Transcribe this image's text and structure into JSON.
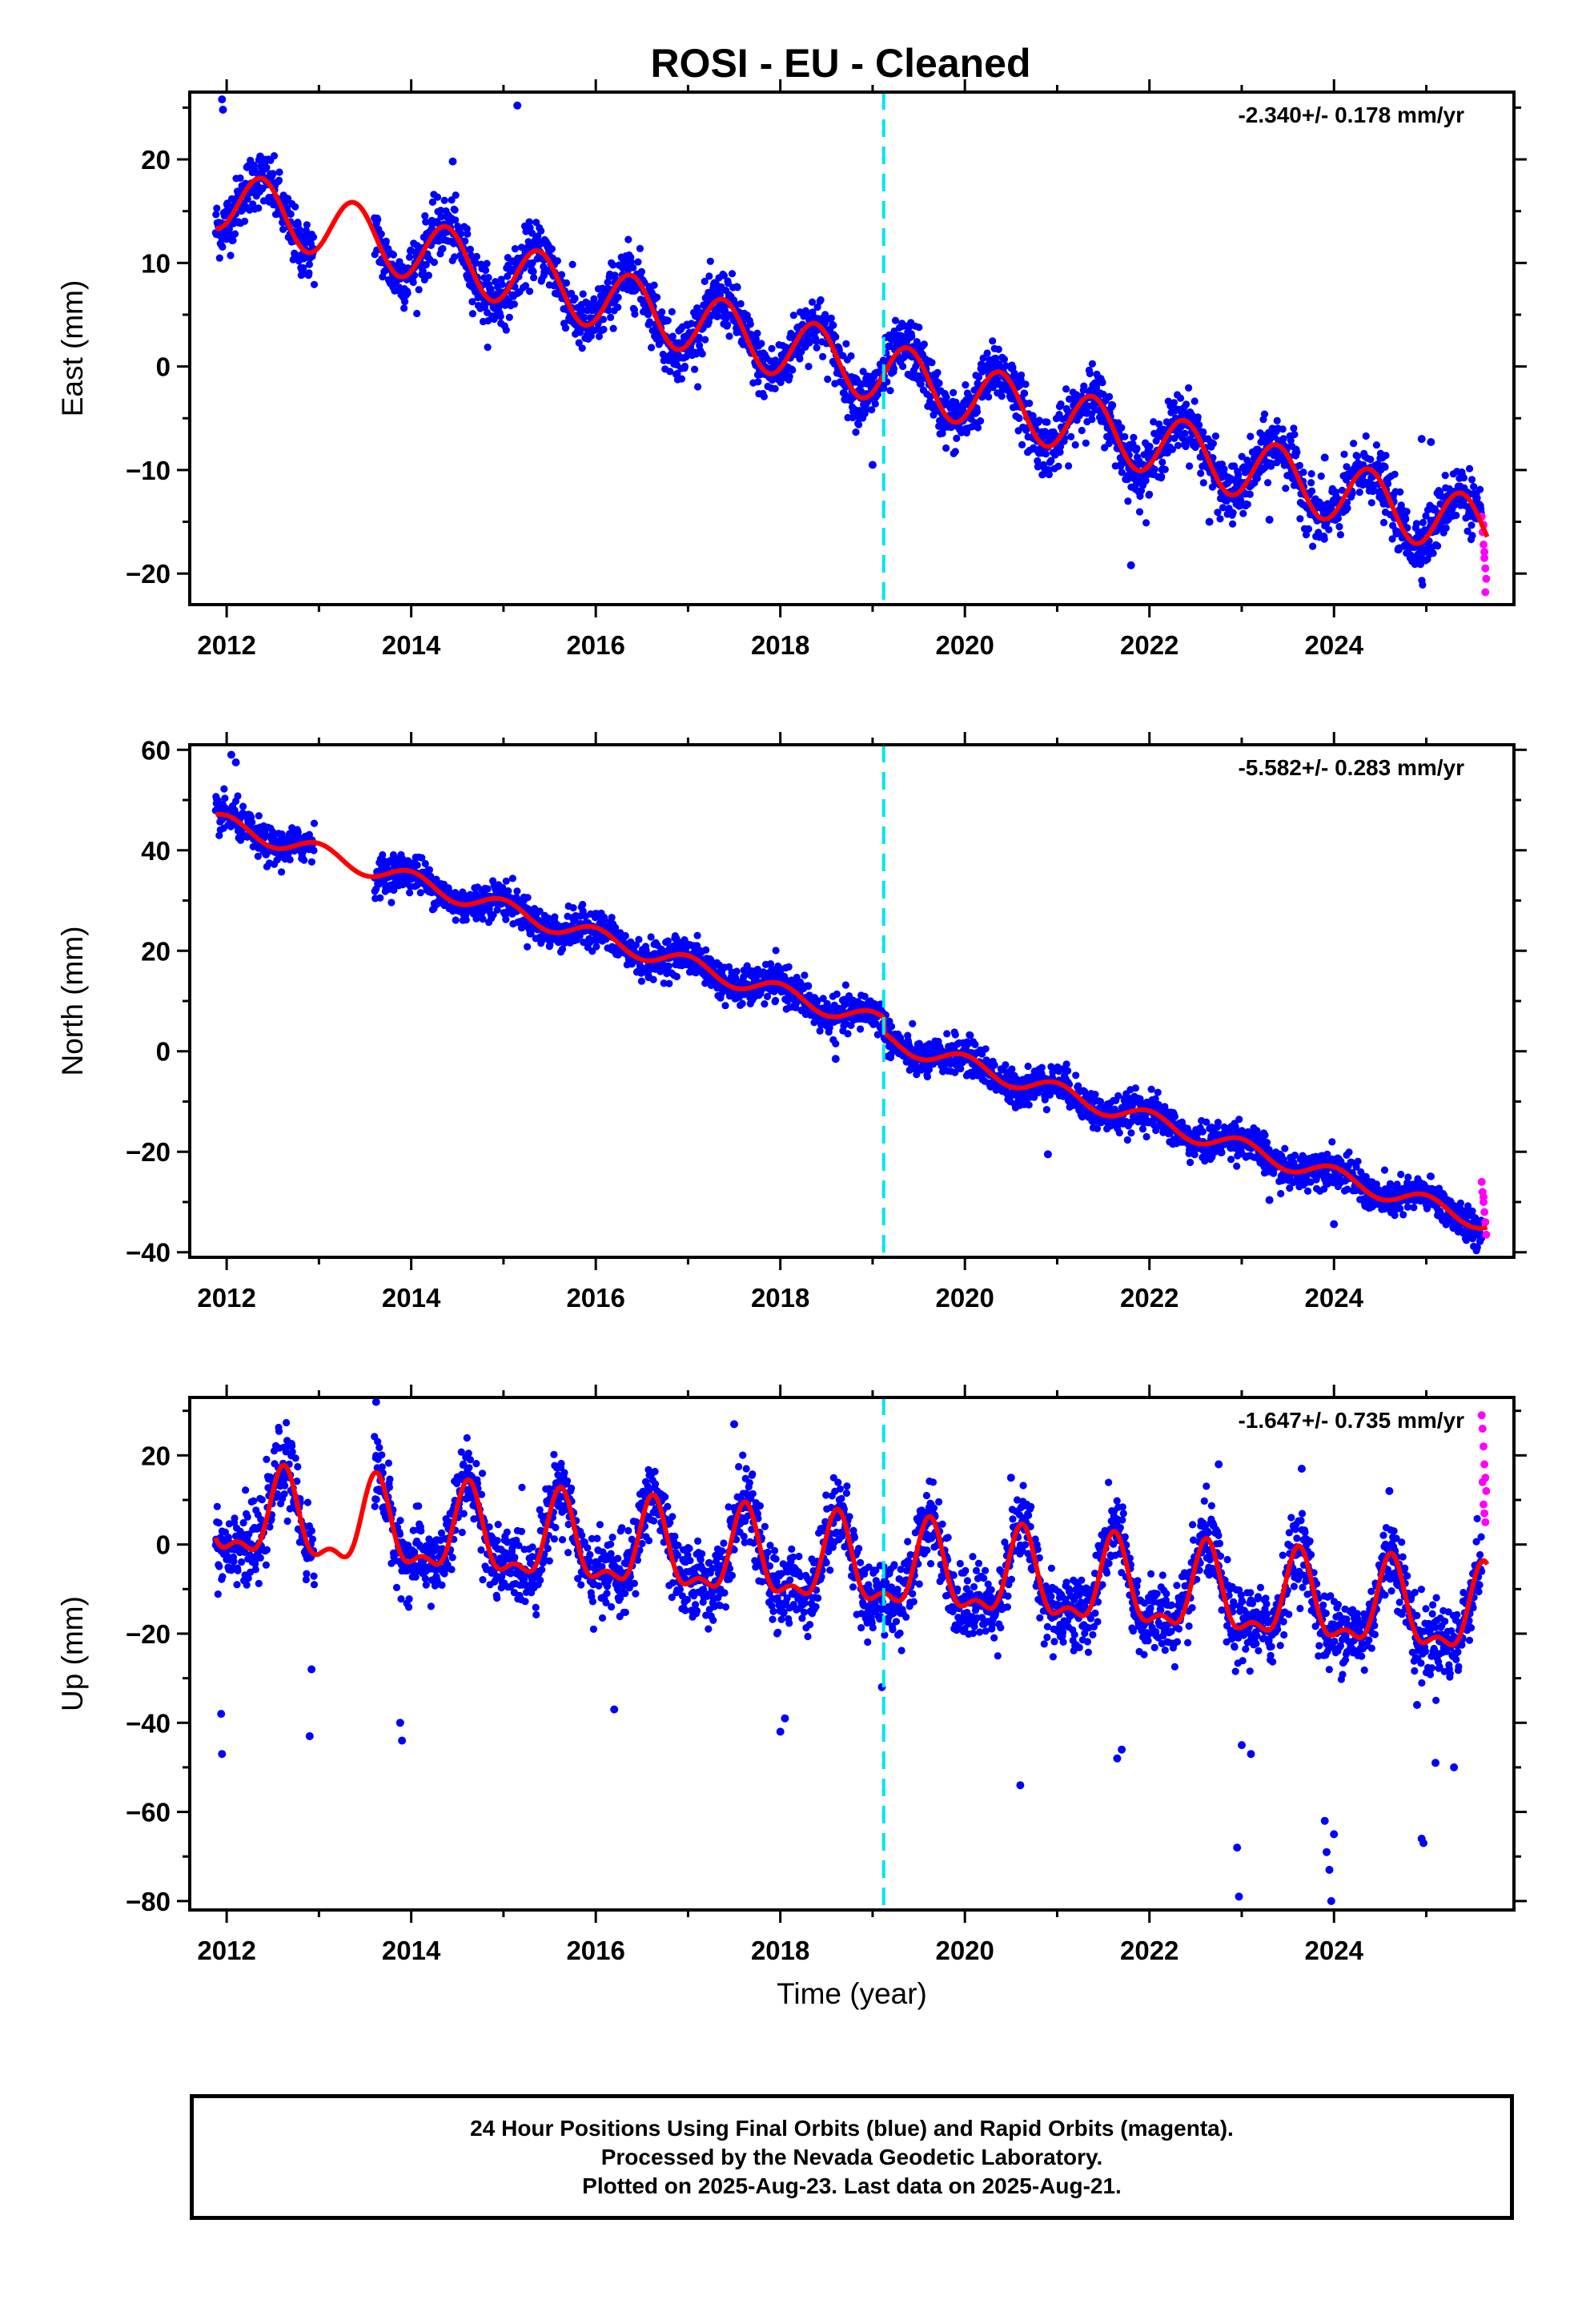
{
  "figure": {
    "title": "ROSI  - EU - Cleaned",
    "xlabel": "Time (year)",
    "footer": [
      "24 Hour Positions Using Final Orbits (blue) and Rapid Orbits (magenta).",
      "Processed by the Nevada Geodetic Laboratory.",
      "Plotted on 2025-Aug-23. Last data on 2025-Aug-21."
    ]
  },
  "colors": {
    "final_orbits": "#0000ff",
    "rapid_orbits": "#ff00ff",
    "model_fit": "#ff0000",
    "equipment_change": "#00e5ee"
  },
  "chart_data": [
    {
      "type": "scatter",
      "component": "east",
      "ylabel": "East (mm)",
      "rate_text": "-2.340+/- 0.178 mm/yr",
      "xlim": [
        2011.6,
        2025.95
      ],
      "ylim": [
        -23,
        26.5
      ],
      "xticks": [
        2012,
        2014,
        2016,
        2018,
        2020,
        2022,
        2024
      ],
      "yticks": [
        -20,
        -10,
        0,
        10,
        20
      ],
      "model": {
        "intercept": 16.3,
        "t0": 2011.9,
        "rate": -2.34,
        "amplitude": 3.0,
        "peak": 0.38,
        "second_amp": 0,
        "second_peak": 0,
        "noise": 1.4
      },
      "gaps": [
        [
          2012.95,
          2013.6
        ]
      ],
      "offsets": [],
      "equipment_change": 2019.12,
      "rapid_start": 2025.6,
      "outliers": [
        [
          2011.95,
          25.8
        ],
        [
          2011.96,
          24.8
        ],
        [
          2015.15,
          25.2
        ],
        [
          2014.45,
          19.8
        ],
        [
          2021.8,
          -19.2
        ],
        [
          2023.3,
          -14.8
        ],
        [
          2022.65,
          -15.0
        ],
        [
          2024.7,
          -17.6
        ],
        [
          2025.05,
          -7.3
        ],
        [
          2023.9,
          -8.8
        ],
        [
          2024.95,
          -7.0
        ],
        [
          2019.0,
          -9.5
        ]
      ],
      "rapid_points": [
        [
          2025.6,
          -14.5
        ],
        [
          2025.61,
          -16.0
        ],
        [
          2025.62,
          -17.2
        ],
        [
          2025.63,
          -18.5
        ],
        [
          2025.64,
          -19.5
        ],
        [
          2025.65,
          -20.5
        ],
        [
          2025.62,
          -15.3
        ],
        [
          2025.64,
          -21.8
        ],
        [
          2025.63,
          -17.9
        ]
      ]
    },
    {
      "type": "scatter",
      "component": "north",
      "ylabel": "North (mm)",
      "rate_text": "-5.582+/- 0.283 mm/yr",
      "xlim": [
        2011.6,
        2025.95
      ],
      "ylim": [
        -41,
        61
      ],
      "xticks": [
        2012,
        2014,
        2016,
        2018,
        2020,
        2022,
        2024
      ],
      "yticks": [
        -40,
        -20,
        0,
        20,
        40,
        60
      ],
      "model": {
        "intercept": 45.7,
        "t0": 2011.9,
        "rate": -5.58,
        "amplitude": 1.8,
        "peak": 0.0,
        "second_amp": 0,
        "second_peak": 0,
        "noise": 1.8
      },
      "gaps": [
        [
          2012.95,
          2013.6
        ]
      ],
      "offsets": [
        [
          2019.12,
          -3.0
        ]
      ],
      "equipment_change": 2019.12,
      "rapid_start": 2025.6,
      "outliers": [
        [
          2012.05,
          59.0
        ],
        [
          2012.1,
          57.5
        ],
        [
          2018.6,
          -1.5
        ],
        [
          2025.55,
          -39.0
        ],
        [
          2020.9,
          -20.5
        ],
        [
          2023.3,
          -29.6
        ],
        [
          2024.0,
          -34.4
        ],
        [
          2018.3,
          13.0
        ]
      ],
      "rapid_points": [
        [
          2025.6,
          -26.0
        ],
        [
          2025.61,
          -28.0
        ],
        [
          2025.62,
          -30.0
        ],
        [
          2025.63,
          -32.0
        ],
        [
          2025.64,
          -34.0
        ],
        [
          2025.65,
          -36.5
        ],
        [
          2025.62,
          -29.0
        ]
      ]
    },
    {
      "type": "scatter",
      "component": "up",
      "ylabel": "Up (mm)",
      "rate_text": "-1.647+/- 0.735 mm/yr",
      "xlim": [
        2011.6,
        2025.95
      ],
      "ylim": [
        -82,
        33
      ],
      "xticks": [
        2012,
        2014,
        2016,
        2018,
        2020,
        2022,
        2024
      ],
      "yticks": [
        -80,
        -60,
        -40,
        -20,
        0,
        20
      ],
      "model": {
        "intercept": 6.0,
        "t0": 2011.9,
        "rate": -1.647,
        "amplitude": 9.0,
        "peak": 0.62,
        "second_amp": 4.0,
        "second_peak": 0.62,
        "noise": 4.2
      },
      "gaps": [
        [
          2012.95,
          2013.6
        ]
      ],
      "offsets": [],
      "equipment_change": 2019.12,
      "rapid_start": 2025.6,
      "outliers": [
        [
          2011.95,
          -47
        ],
        [
          2011.94,
          -38
        ],
        [
          2012.9,
          -43
        ],
        [
          2012.92,
          -28
        ],
        [
          2013.9,
          -44
        ],
        [
          2013.88,
          -40
        ],
        [
          2013.62,
          32
        ],
        [
          2016.2,
          -37
        ],
        [
          2018.0,
          -42
        ],
        [
          2018.05,
          -39
        ],
        [
          2019.1,
          -32
        ],
        [
          2020.6,
          -54
        ],
        [
          2021.65,
          -48
        ],
        [
          2021.7,
          -46
        ],
        [
          2022.95,
          -68
        ],
        [
          2022.97,
          -79
        ],
        [
          2023.0,
          -45
        ],
        [
          2023.1,
          -47
        ],
        [
          2023.9,
          -62
        ],
        [
          2023.92,
          -69
        ],
        [
          2023.95,
          -73
        ],
        [
          2023.97,
          -80
        ],
        [
          2024.0,
          -65
        ],
        [
          2024.95,
          -66
        ],
        [
          2024.97,
          -67
        ],
        [
          2025.3,
          -50
        ],
        [
          2025.1,
          -49
        ],
        [
          2024.9,
          -36
        ],
        [
          2022.75,
          18
        ],
        [
          2023.65,
          17
        ],
        [
          2024.6,
          12
        ],
        [
          2020.5,
          15
        ],
        [
          2017.5,
          27
        ]
      ],
      "rapid_points": [
        [
          2025.6,
          29
        ],
        [
          2025.61,
          26
        ],
        [
          2025.62,
          22
        ],
        [
          2025.63,
          18
        ],
        [
          2025.64,
          15
        ],
        [
          2025.65,
          12
        ],
        [
          2025.62,
          9
        ],
        [
          2025.63,
          7
        ],
        [
          2025.64,
          5
        ],
        [
          2025.61,
          14
        ]
      ]
    }
  ]
}
